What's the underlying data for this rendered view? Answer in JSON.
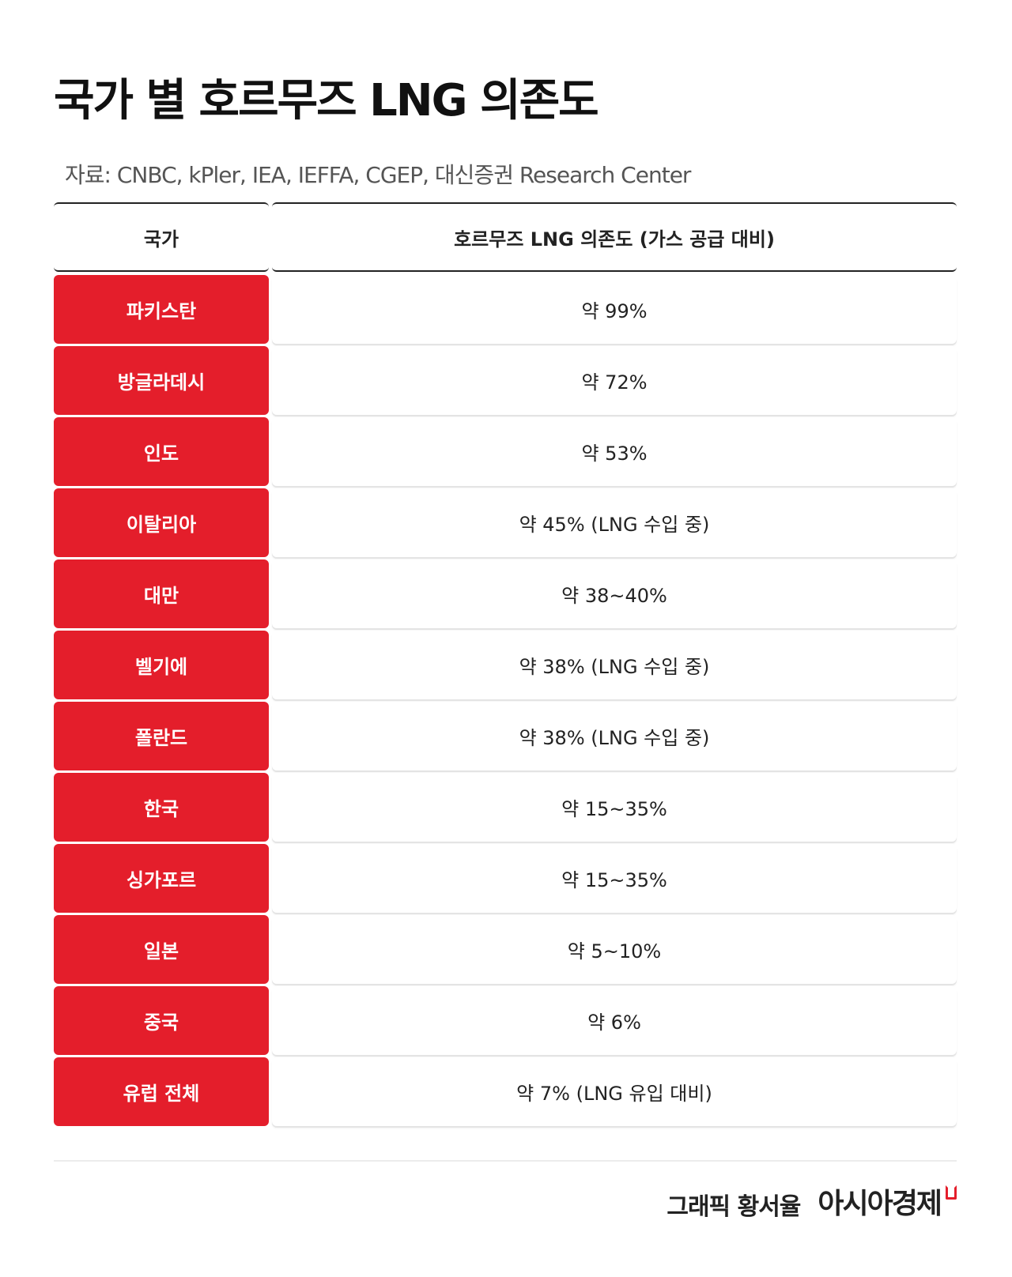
{
  "title": "국가 별 호르무즈 LNG 의존도",
  "source": "자료: CNBC, kPler, IEA, IEFFA, CGEP, 대신증권 Research Center",
  "table": {
    "headers": {
      "country": "국가",
      "dependency": "호르무즈 LNG 의존도 (가스 공급 대비)"
    },
    "rows": [
      {
        "country": "파키스탄",
        "value": "약 99%"
      },
      {
        "country": "방글라데시",
        "value": "약 72%"
      },
      {
        "country": "인도",
        "value": "약 53%"
      },
      {
        "country": "이탈리아",
        "value": "약 45% (LNG 수입 중)"
      },
      {
        "country": "대만",
        "value": "약 38~40%"
      },
      {
        "country": "벨기에",
        "value": "약 38% (LNG 수입 중)"
      },
      {
        "country": "폴란드",
        "value": "약 38% (LNG 수입 중)"
      },
      {
        "country": "한국",
        "value": "약 15~35%"
      },
      {
        "country": "싱가포르",
        "value": "약 15~35%"
      },
      {
        "country": "일본",
        "value": "약 5~10%"
      },
      {
        "country": "중국",
        "value": "약 6%"
      },
      {
        "country": "유럽 전체",
        "value": "약 7% (LNG 유입 대비)"
      }
    ]
  },
  "footer": {
    "credit": "그래픽  황서율",
    "logo_text": "아시아경제"
  },
  "colors": {
    "accent": "#e41e2b"
  }
}
